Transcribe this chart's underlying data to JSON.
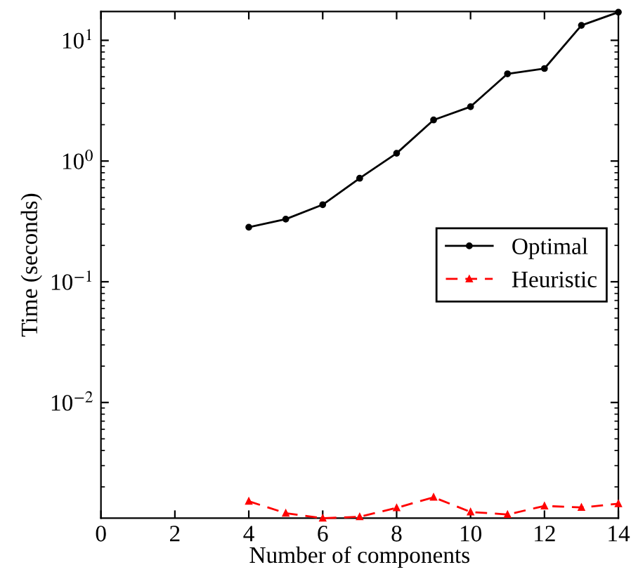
{
  "chart_data": {
    "type": "line",
    "xlabel": "Number of components",
    "ylabel": "Time (seconds)",
    "log": "y",
    "x": [
      4,
      5,
      6,
      7,
      8,
      9,
      10,
      11,
      12,
      13,
      14
    ],
    "series": [
      {
        "name": "Optimal",
        "color": "#000000",
        "marker": "circle",
        "line_style": "solid",
        "values": [
          0.283,
          0.33,
          0.435,
          0.72,
          1.16,
          2.19,
          2.82,
          5.28,
          5.84,
          13.3,
          17.1
        ]
      },
      {
        "name": "Heuristic",
        "color": "#ff0000",
        "marker": "triangle",
        "line_style": "dashed",
        "values": [
          0.00152,
          0.00121,
          0.0011,
          0.00113,
          0.00134,
          0.00164,
          0.00124,
          0.00118,
          0.00139,
          0.00135,
          0.00145
        ]
      }
    ],
    "xlim": [
      0,
      14
    ],
    "xticks": [
      0,
      2,
      4,
      6,
      8,
      10,
      12,
      14
    ],
    "ylim": [
      0.0011,
      17.3
    ],
    "yticks": [
      {
        "value": 0.01,
        "label": "10$^{−2}$"
      },
      {
        "value": 0.1,
        "label": "10$^{−1}$"
      },
      {
        "value": 1,
        "label": "10$^{0}$"
      },
      {
        "value": 10,
        "label": "10$^{1}$"
      }
    ],
    "grid": false,
    "legend": "center right"
  }
}
